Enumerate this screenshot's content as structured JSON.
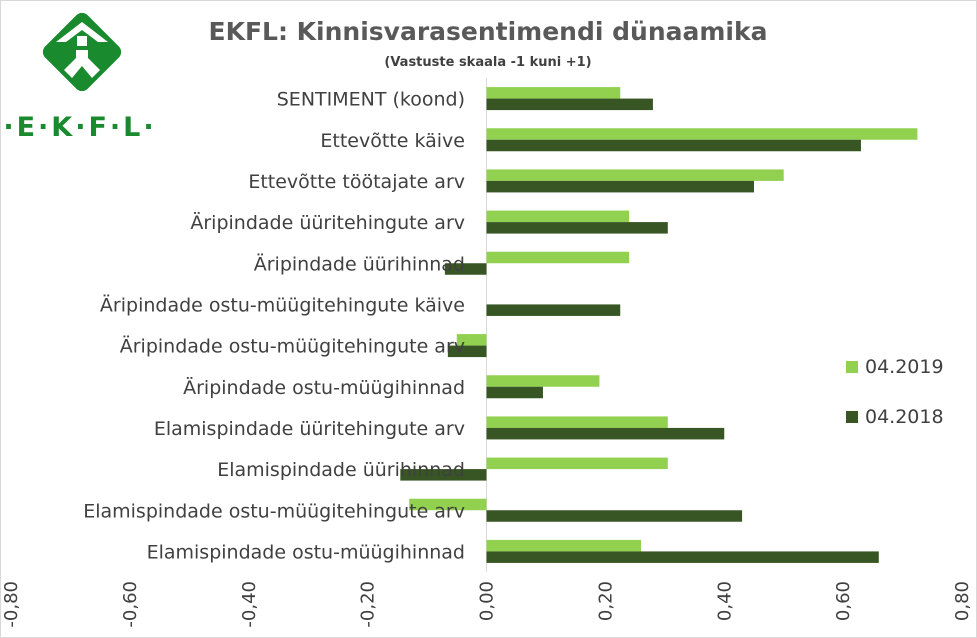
{
  "logo": {
    "text": "·E·K·F·L·",
    "color": "#1a8a2e"
  },
  "chart_data": {
    "type": "bar",
    "orientation": "horizontal",
    "title": "EKFL: Kinnisvarasentimendi dünaamika",
    "subtitle": "(Vastuste skaala -1 kuni +1)",
    "categories": [
      "SENTIMENT (koond)",
      "Ettevõtte käive",
      "Ettevõtte töötajate arv",
      "Äripindade üüritehingute arv",
      "Äripindade üürihinnad",
      "Äripindade ostu-müügitehingute käive",
      "Äripindade ostu-müügitehingute arv",
      "Äripindade ostu-müügihinnad",
      "Elamispindade üüritehingute arv",
      "Elamispindade üürihinnad",
      "Elamispindade ostu-müügitehingute arv",
      "Elamispindade ostu-müügihinnad"
    ],
    "series": [
      {
        "name": "04.2019",
        "color": "#92d050",
        "values": [
          0.225,
          0.725,
          0.5,
          0.24,
          0.24,
          0.0,
          -0.05,
          0.19,
          0.305,
          0.305,
          -0.13,
          0.26
        ]
      },
      {
        "name": "04.2018",
        "color": "#375623",
        "values": [
          0.28,
          0.63,
          0.45,
          0.305,
          -0.07,
          0.225,
          -0.065,
          0.095,
          0.4,
          -0.145,
          0.43,
          0.66
        ]
      }
    ],
    "xlim": [
      -0.8,
      0.8
    ],
    "xticks": [
      "-0,80",
      "-0,60",
      "-0,40",
      "-0,20",
      "0,00",
      "0,20",
      "0,40",
      "0,60",
      "0,80"
    ],
    "xtick_values": [
      -0.8,
      -0.6,
      -0.4,
      -0.2,
      0.0,
      0.2,
      0.4,
      0.6,
      0.8
    ],
    "grid": false,
    "legend_position": "right"
  }
}
